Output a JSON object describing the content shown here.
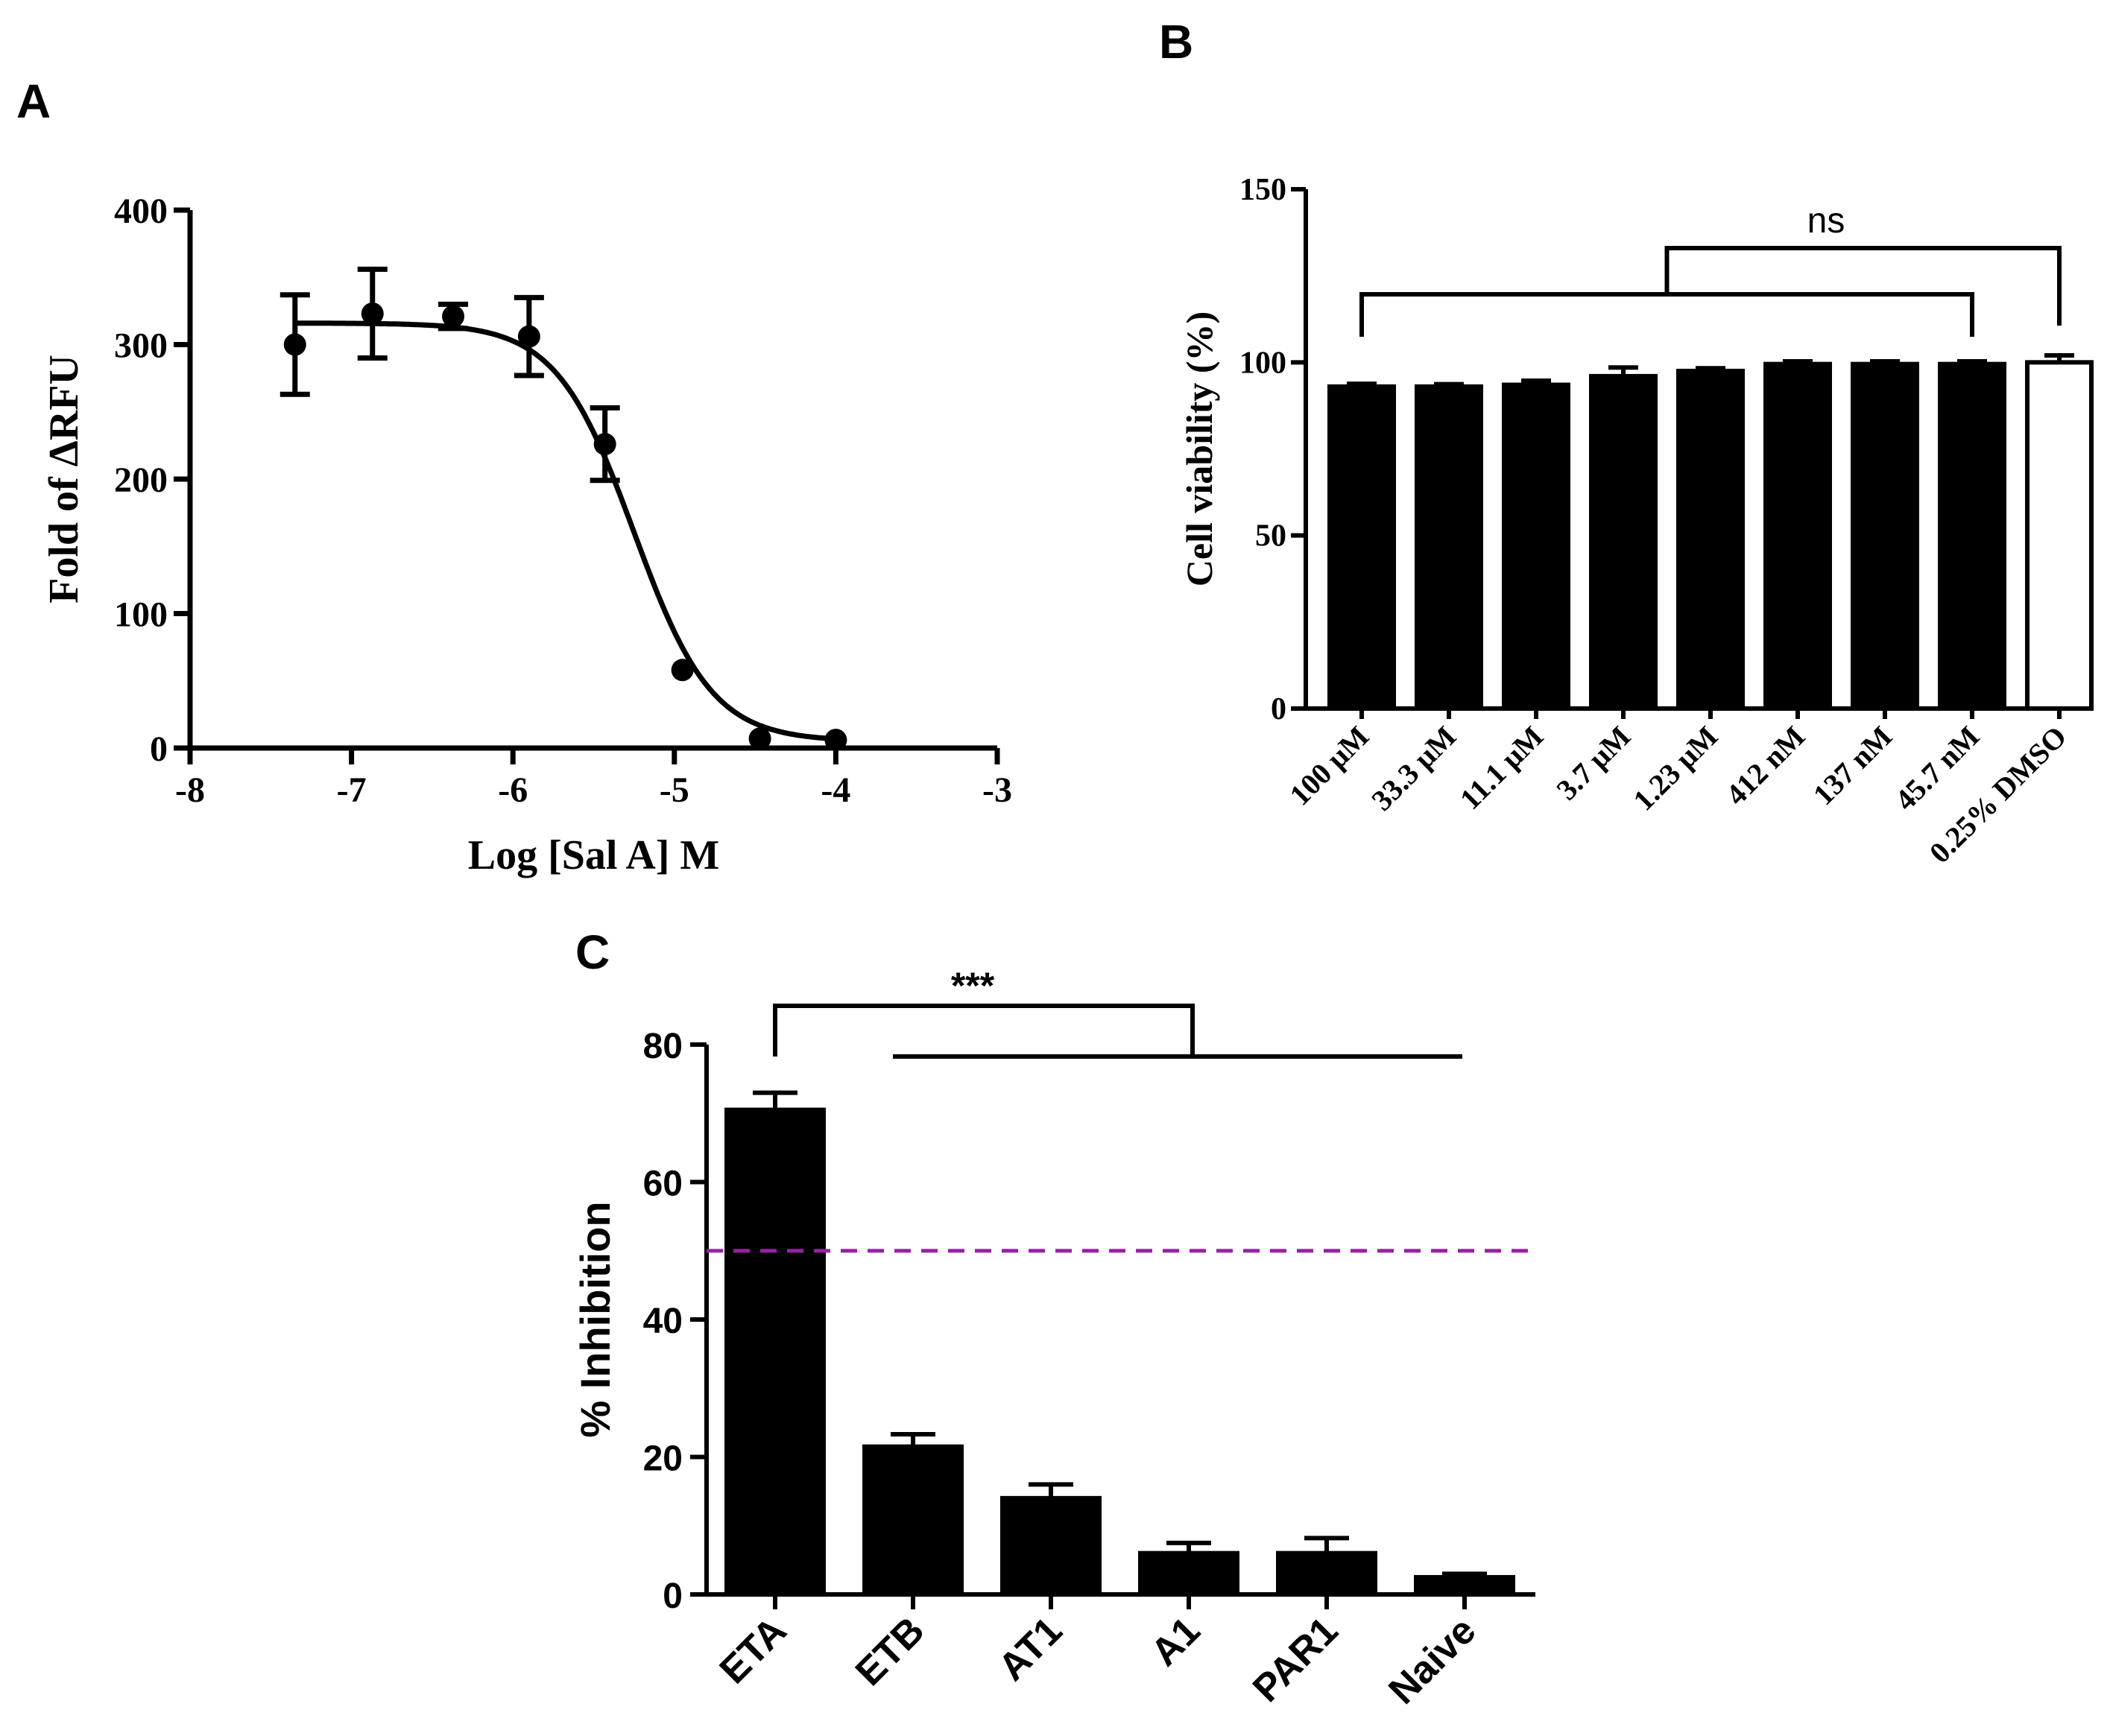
{
  "chart_data": [
    {
      "panel_label": "A",
      "type": "scatter",
      "xlabel": "Log [Sal A] M",
      "ylabel": "Fold of ΔRFU",
      "xlim": [
        -8,
        -3
      ],
      "ylim": [
        0,
        400
      ],
      "xticks": [
        -8,
        -7,
        -6,
        -5,
        -4,
        -3
      ],
      "yticks": [
        0,
        100,
        200,
        300,
        400
      ],
      "points": [
        {
          "x": -7.35,
          "y": 300,
          "err": 37
        },
        {
          "x": -6.87,
          "y": 323,
          "err": 33
        },
        {
          "x": -6.37,
          "y": 321,
          "err": 9
        },
        {
          "x": -5.9,
          "y": 306,
          "err": 29
        },
        {
          "x": -5.43,
          "y": 226,
          "err": 27
        },
        {
          "x": -4.95,
          "y": 58,
          "err": 0
        },
        {
          "x": -4.47,
          "y": 7,
          "err": 0
        },
        {
          "x": -4.0,
          "y": 6,
          "err": 0
        }
      ],
      "fit": {
        "type": "sigmoidal-dose-response",
        "top": 316,
        "bottom": 5,
        "log_ic50": -5.25,
        "hill": -1.8
      },
      "grid": false
    },
    {
      "panel_label": "B",
      "type": "bar",
      "ylabel": "Cell viability (%)",
      "ylim": [
        0,
        150
      ],
      "yticks": [
        0,
        50,
        100,
        150
      ],
      "categories": [
        "100 μM",
        "33.3 μM",
        "11.1 μM",
        "3.7 μM",
        "1.23 μM",
        "412 nM",
        "137 nM",
        "45.7 nM",
        "0.25% DMSO"
      ],
      "values": [
        93,
        93,
        93.5,
        96,
        97.5,
        99.5,
        99.5,
        99.5,
        100
      ],
      "errors": [
        0.8,
        0.7,
        1.2,
        2.5,
        0.8,
        0.8,
        0.8,
        0.8,
        2
      ],
      "bar_colors": [
        "#000000",
        "#000000",
        "#000000",
        "#000000",
        "#000000",
        "#000000",
        "#000000",
        "#000000",
        "#ffffff"
      ],
      "annotation": "ns",
      "grid": false
    },
    {
      "panel_label": "C",
      "type": "bar",
      "ylabel": "% Inhibition",
      "ylim": [
        0,
        80
      ],
      "yticks": [
        0,
        20,
        40,
        60,
        80
      ],
      "categories": [
        "ETA",
        "ETB",
        "AT1",
        "A1",
        "PAR1",
        "Naive"
      ],
      "values": [
        70.5,
        21.5,
        14,
        6,
        6,
        2.5
      ],
      "errors": [
        2.5,
        1.8,
        2.0,
        1.5,
        2.2,
        0.5
      ],
      "reference_line": {
        "y": 50,
        "color": "#9b1fa8",
        "style": "dashed"
      },
      "annotation": "***",
      "grid": false
    }
  ]
}
